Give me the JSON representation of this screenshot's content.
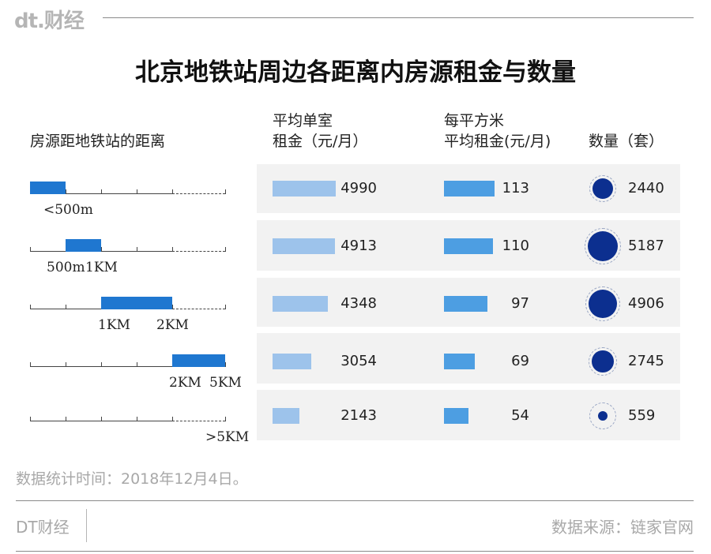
{
  "brand": {
    "logo_text": "dt.财经",
    "footer_name": "DT财经"
  },
  "chart_data": {
    "type": "table",
    "title": "北京地铁站周边各距离内房源租金与数量",
    "headers": {
      "distance": "房源距地铁站的距离",
      "rent_line1": "平均单室",
      "rent_line2": "租金（元/月）",
      "sqm_line1": "每平方米",
      "sqm_line2": "平均租金(元/月)",
      "count": "数量（套）"
    },
    "scale": {
      "min_km": 0,
      "max_km": 5,
      "breakpoints_km": [
        0.5,
        1,
        2,
        5
      ]
    },
    "rows": [
      {
        "from_km": 0,
        "to_km": 0.5,
        "label_from": "<500m",
        "label_to": "",
        "rent": 4990,
        "rent_per_sqm": 113,
        "count": 2440
      },
      {
        "from_km": 0.5,
        "to_km": 1,
        "label_from": "500m",
        "label_to": "1KM",
        "rent": 4913,
        "rent_per_sqm": 110,
        "count": 5187
      },
      {
        "from_km": 1,
        "to_km": 2,
        "label_from": "1KM",
        "label_to": "2KM",
        "rent": 4348,
        "rent_per_sqm": 97,
        "count": 4906
      },
      {
        "from_km": 2,
        "to_km": 5,
        "label_from": "2KM",
        "label_to": "5KM",
        "rent": 3054,
        "rent_per_sqm": 69,
        "count": 2745
      },
      {
        "from_km": 5,
        "to_km": null,
        "label_from": "",
        "label_to": ">5KM",
        "rent": 2143,
        "rent_per_sqm": 54,
        "count": 559
      }
    ],
    "colors": {
      "rent_bar": "#9dc3eb",
      "sqm_bar": "#4d9ee2",
      "count_dot": "#0c2f8f",
      "distance_segment": "#1f77d0"
    }
  },
  "footer": {
    "note": "数据统计时间：2018年12月4日。",
    "source": "数据来源：链家官网"
  }
}
